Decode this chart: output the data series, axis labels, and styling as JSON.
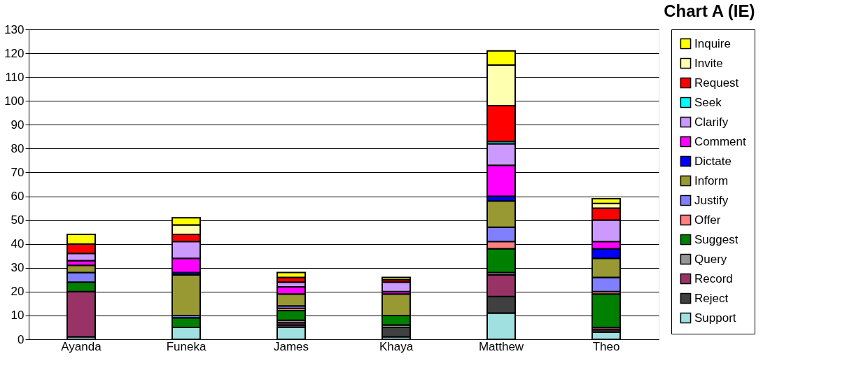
{
  "chart_data": {
    "type": "bar",
    "stacked": true,
    "title": "Chart A (IE)",
    "categories": [
      "Ayanda",
      "Funeka",
      "James",
      "Khaya",
      "Matthew",
      "Theo"
    ],
    "series": [
      {
        "name": "Support",
        "color": "#a0e0e0",
        "values": [
          1,
          5,
          5,
          1,
          11,
          3
        ]
      },
      {
        "name": "Reject",
        "color": "#404040",
        "values": [
          0,
          0,
          1,
          4,
          7,
          1
        ]
      },
      {
        "name": "Record",
        "color": "#993366",
        "values": [
          19,
          0,
          1,
          0,
          9,
          1
        ]
      },
      {
        "name": "Query",
        "color": "#969696",
        "values": [
          0,
          0,
          1,
          1,
          1,
          0
        ]
      },
      {
        "name": "Suggest",
        "color": "#008000",
        "values": [
          4,
          4,
          4,
          4,
          10,
          14
        ]
      },
      {
        "name": "Offer",
        "color": "#ff8080",
        "values": [
          0,
          0,
          1,
          0,
          3,
          1
        ]
      },
      {
        "name": "Justify",
        "color": "#8080ff",
        "values": [
          4,
          1,
          1,
          0,
          6,
          6
        ]
      },
      {
        "name": "Inform",
        "color": "#999933",
        "values": [
          3,
          17,
          5,
          9,
          11,
          8
        ]
      },
      {
        "name": "Dictate",
        "color": "#0000ff",
        "values": [
          0,
          1,
          0,
          0,
          2,
          4
        ]
      },
      {
        "name": "Comment",
        "color": "#ff00ff",
        "values": [
          2,
          6,
          3,
          1,
          13,
          3
        ]
      },
      {
        "name": "Clarify",
        "color": "#cc99ff",
        "values": [
          3,
          7,
          2,
          4,
          9,
          9
        ]
      },
      {
        "name": "Seek",
        "color": "#00ffff",
        "values": [
          0,
          0,
          0,
          0,
          1,
          0
        ]
      },
      {
        "name": "Request",
        "color": "#ff0000",
        "values": [
          4,
          3,
          2,
          1,
          15,
          5
        ]
      },
      {
        "name": "Invite",
        "color": "#ffffb0",
        "values": [
          0,
          4,
          0,
          0,
          17,
          2
        ]
      },
      {
        "name": "Inquire",
        "color": "#ffff00",
        "values": [
          4,
          3,
          2,
          1,
          6,
          2
        ]
      }
    ],
    "ylim": [
      0,
      130
    ],
    "yticks": [
      0,
      10,
      20,
      30,
      40,
      50,
      60,
      70,
      80,
      90,
      100,
      110,
      120,
      130
    ],
    "grid": "y",
    "legend": "right"
  }
}
